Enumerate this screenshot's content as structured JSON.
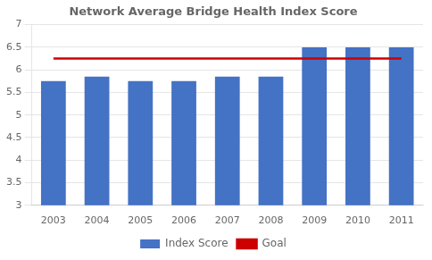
{
  "chart_data": {
    "type": "bar",
    "title": "Network Average Bridge Health Index Score",
    "categories": [
      "2003",
      "2004",
      "2005",
      "2006",
      "2007",
      "2008",
      "2009",
      "2010",
      "2011"
    ],
    "series": [
      {
        "name": "Index Score",
        "type": "bar",
        "color": "#4472C4",
        "values": [
          5.75,
          5.85,
          5.75,
          5.75,
          5.85,
          5.85,
          6.5,
          6.5,
          6.5
        ]
      },
      {
        "name": "Goal",
        "type": "line",
        "color": "#CC0000",
        "values": [
          6.25,
          6.25,
          6.25,
          6.25,
          6.25,
          6.25,
          6.25,
          6.25,
          6.25
        ]
      }
    ],
    "ylim": [
      3.0,
      7.0
    ],
    "yticks": [
      3,
      3.5,
      4,
      4.5,
      5,
      5.5,
      6,
      6.5,
      7
    ],
    "grid": true,
    "legend": "bottom"
  }
}
